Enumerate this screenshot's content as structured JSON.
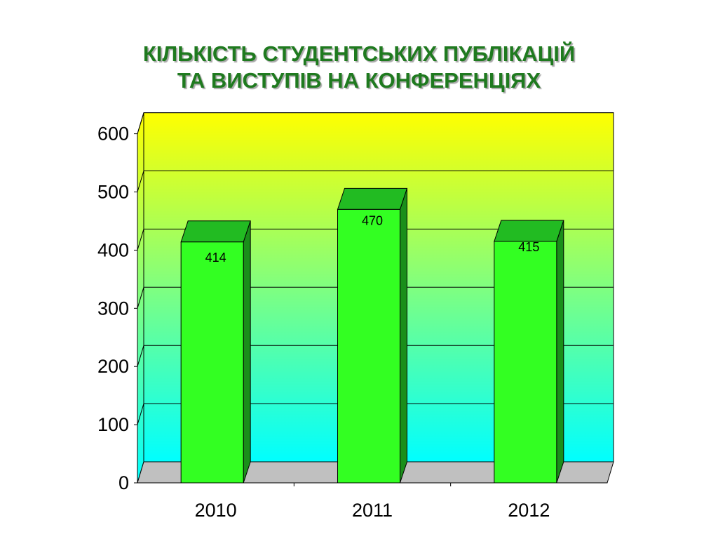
{
  "title": {
    "line1": "КІЛЬКІСТЬ СТУДЕНТСЬКИХ ПУБЛІКАЦІЙ",
    "line2": "ТА ВИСТУПІВ НА КОНФЕРЕНЦІЯХ"
  },
  "colors": {
    "title": "#1f7a1f",
    "bar_front": "#33ff22",
    "bar_top": "#22bb22",
    "bar_side": "#1a8f1a",
    "wall_top": "#ffff00",
    "wall_bottom": "#00ffff",
    "floor": "#c0c0c0"
  },
  "chart_data": {
    "type": "bar",
    "categories": [
      "2010",
      "2011",
      "2012"
    ],
    "values": [
      414,
      470,
      415
    ],
    "data_labels": [
      "414",
      "470",
      "415"
    ],
    "ylim": [
      0,
      600
    ],
    "yticks": [
      "0",
      "100",
      "200",
      "300",
      "400",
      "500",
      "600"
    ],
    "grid": true,
    "legend": "none",
    "style": "3d-column"
  }
}
